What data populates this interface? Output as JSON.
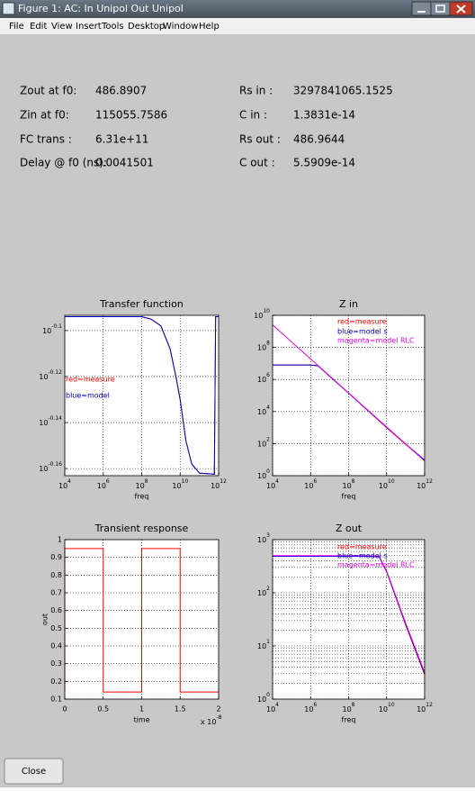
{
  "window": {
    "title": "Figure 1: AC: In Unipol Out Unipol",
    "menu": [
      "File",
      "Edit",
      "View",
      "Insert",
      "Tools",
      "Desktop",
      "Window",
      "Help"
    ],
    "close_button": "Close"
  },
  "info": {
    "left": [
      {
        "label": "Zout at f0:",
        "value": "486.8907"
      },
      {
        "label": "Zin at f0:",
        "value": "115055.7586"
      },
      {
        "label": "FC trans :",
        "value": "6.31e+11"
      },
      {
        "label": "Delay @ f0 (ns):",
        "value": "0.0041501"
      }
    ],
    "right": [
      {
        "label": "Rs in :",
        "value": "3297841065.1525"
      },
      {
        "label": "C in :",
        "value": "1.3831e-14"
      },
      {
        "label": "Rs out :",
        "value": "486.9644"
      },
      {
        "label": "C out :",
        "value": "5.5909e-14"
      }
    ]
  },
  "chart_data": [
    {
      "type": "line",
      "title": "Transfer function",
      "xlabel": "freq",
      "xscale": "log",
      "yscale": "log",
      "grid": true,
      "x": [
        10000,
        100000000,
        300000000,
        1000000000,
        3000000000,
        6000000000,
        10000000000,
        20000000000,
        40000000000,
        100000000000,
        600000000000,
        700000000000,
        1000000000000
      ],
      "series": [
        {
          "name": "measure",
          "color": "#ff0000",
          "values": [
            0.8054,
            0.8054,
            0.8035,
            0.798,
            0.7798,
            0.7586,
            0.7413,
            0.7112,
            0.695,
            0.6887,
            0.6879,
            0.8054,
            0.8054
          ]
        },
        {
          "name": "model",
          "color": "#0000cc",
          "values": [
            0.8054,
            0.8054,
            0.8035,
            0.798,
            0.7798,
            0.7586,
            0.7413,
            0.7112,
            0.695,
            0.6887,
            0.6879,
            0.8054,
            0.8054
          ]
        }
      ],
      "annotations": [
        {
          "text": "red=measure",
          "color": "#ff0000"
        },
        {
          "text": "blue=model",
          "color": "#0000cc"
        }
      ],
      "xlim": [
        10000,
        1000000000000
      ],
      "xticks": [
        {
          "value": 10000,
          "label": "10^{4}"
        },
        {
          "value": 1000000,
          "label": "10^{6}"
        },
        {
          "value": 100000000,
          "label": "10^{8}"
        },
        {
          "value": 10000000000,
          "label": "10^{10}"
        },
        {
          "value": 1000000000000,
          "label": "10^{12}"
        }
      ],
      "ylim": [
        0.6869,
        0.8065
      ],
      "yticks": [
        {
          "value": 0.7943,
          "label": "10^{-0.1}"
        },
        {
          "value": 0.7586,
          "label": "10^{-0.12}"
        },
        {
          "value": 0.7244,
          "label": "10^{-0.14}"
        },
        {
          "value": 0.6918,
          "label": "10^{-0.16}"
        }
      ]
    },
    {
      "type": "line",
      "title": "Z in",
      "xlabel": "freq",
      "xscale": "log",
      "yscale": "log",
      "grid": true,
      "x": [
        10000,
        100000,
        1000000,
        2500000,
        10000000,
        100000000,
        1000000000,
        10000000000,
        100000000000,
        1000000000000
      ],
      "series": [
        {
          "name": "measure",
          "color": "#ff0000",
          "values": [
            7943000,
            7943000,
            7943000,
            7000000,
            1585000,
            141300,
            12023,
            1000,
            89.1,
            8.9
          ]
        },
        {
          "name": "model s",
          "color": "#0000cc",
          "values": [
            7943000,
            7943000,
            7943000,
            7000000,
            1585000,
            141300,
            12023,
            1050,
            95,
            9.5
          ]
        },
        {
          "name": "model RLC",
          "color": "#ee00ee",
          "values": [
            2512000000,
            218800000,
            19050000,
            7244000,
            1660000,
            144500,
            12589,
            1096,
            95.5,
            8.32
          ]
        }
      ],
      "annotations": [
        {
          "text": "red=measure",
          "color": "#ff0000"
        },
        {
          "text": "blue=model s",
          "color": "#0000cc"
        },
        {
          "text": "magenta=model RLC",
          "color": "#ee00ee"
        }
      ],
      "xlim": [
        10000,
        1000000000000
      ],
      "xticks": [
        {
          "value": 10000,
          "label": "10^{4}"
        },
        {
          "value": 1000000,
          "label": "10^{6}"
        },
        {
          "value": 100000000,
          "label": "10^{8}"
        },
        {
          "value": 10000000000,
          "label": "10^{10}"
        },
        {
          "value": 1000000000000,
          "label": "10^{12}"
        }
      ],
      "ylim": [
        1,
        10000000000
      ],
      "yticks": [
        {
          "value": 1,
          "label": "10^{0}"
        },
        {
          "value": 100,
          "label": "10^{2}"
        },
        {
          "value": 10000,
          "label": "10^{4}"
        },
        {
          "value": 1000000,
          "label": "10^{6}"
        },
        {
          "value": 100000000,
          "label": "10^{8}"
        },
        {
          "value": 10000000000,
          "label": "10^{10}"
        }
      ]
    },
    {
      "type": "line",
      "title": "Transient response",
      "xlabel": "time",
      "ylabel": "out",
      "x_multiplier": "x 10^{-8}",
      "grid": true,
      "x": [
        0,
        0,
        0.5,
        0.5,
        1,
        1,
        1.5,
        1.5,
        2
      ],
      "series": [
        {
          "name": "out",
          "color": "#ff0000",
          "values": [
            0.14,
            0.95,
            0.95,
            0.14,
            0.14,
            0.95,
            0.95,
            0.14,
            0.14
          ]
        }
      ],
      "xlim": [
        0,
        2
      ],
      "xticks": [
        0,
        0.5,
        1,
        1.5,
        2
      ],
      "ylim": [
        0.1,
        1
      ],
      "yticks": [
        0.1,
        0.2,
        0.3,
        0.4,
        0.5,
        0.6,
        0.7,
        0.8,
        0.9,
        1
      ]
    },
    {
      "type": "line",
      "title": "Z out",
      "xlabel": "freq",
      "xscale": "log",
      "yscale": "log",
      "grid": true,
      "minor_grid": true,
      "x": [
        10000,
        1000000,
        100000000,
        1000000000,
        4000000000,
        10000000000,
        100000000000,
        1000000000000
      ],
      "series": [
        {
          "name": "measure",
          "color": "#ff0000",
          "values": [
            486.9,
            486.9,
            486.9,
            486.9,
            480,
            250,
            25,
            2.9
          ]
        },
        {
          "name": "model s",
          "color": "#0000cc",
          "values": [
            486.96,
            486.96,
            486.96,
            486.96,
            480,
            252,
            26,
            3
          ]
        },
        {
          "name": "model RLC",
          "color": "#ee00ee",
          "values": [
            500,
            500,
            500,
            500,
            490,
            260,
            27,
            3.2
          ]
        }
      ],
      "annotations": [
        {
          "text": "red=measure",
          "color": "#ff0000"
        },
        {
          "text": "blue=model s",
          "color": "#0000cc"
        },
        {
          "text": "magenta=model RLC",
          "color": "#ee00ee"
        }
      ],
      "xlim": [
        10000,
        1000000000000
      ],
      "xticks": [
        {
          "value": 10000,
          "label": "10^{4}"
        },
        {
          "value": 1000000,
          "label": "10^{6}"
        },
        {
          "value": 100000000,
          "label": "10^{8}"
        },
        {
          "value": 10000000000,
          "label": "10^{10}"
        },
        {
          "value": 1000000000000,
          "label": "10^{12}"
        }
      ],
      "ylim": [
        1,
        1000
      ],
      "yticks": [
        {
          "value": 1,
          "label": "10^{0}"
        },
        {
          "value": 10,
          "label": "10^{1}"
        },
        {
          "value": 100,
          "label": "10^{2}"
        },
        {
          "value": 1000,
          "label": "10^{3}"
        }
      ]
    }
  ]
}
